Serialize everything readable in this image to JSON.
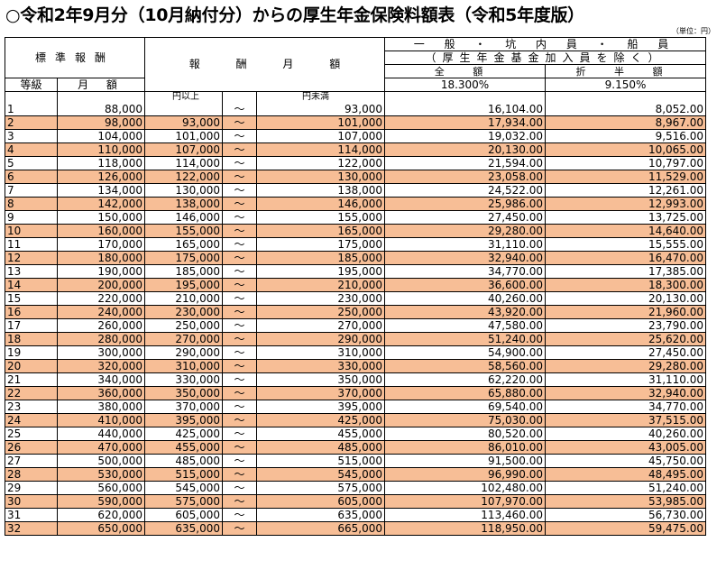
{
  "title": "○令和2年9月分（10月納付分）からの厚生年金保険料額表（令和5年度版）",
  "unit_note": "（単位：円）",
  "header": {
    "standard": "標準報酬",
    "remuneration": "報 酬 月 額",
    "general_line1": "一 般 ・ 坑 内 員 ・ 船 員",
    "general_line2": "（厚生年金基金加入員を除く）",
    "grade": "等級",
    "monthly_amount": "月 額",
    "full": "全 額",
    "half": "折 半 額",
    "full_rate": "18.300%",
    "half_rate": "9.150%",
    "from_label": "円以上",
    "to_label": "円未満",
    "tilde": "～"
  },
  "table": {
    "rows": [
      {
        "grade": "1",
        "monthly": "88,000",
        "from": "",
        "to": "93,000",
        "full": "16,104.00",
        "half": "8,052.00"
      },
      {
        "grade": "2",
        "monthly": "98,000",
        "from": "93,000",
        "to": "101,000",
        "full": "17,934.00",
        "half": "8,967.00"
      },
      {
        "grade": "3",
        "monthly": "104,000",
        "from": "101,000",
        "to": "107,000",
        "full": "19,032.00",
        "half": "9,516.00"
      },
      {
        "grade": "4",
        "monthly": "110,000",
        "from": "107,000",
        "to": "114,000",
        "full": "20,130.00",
        "half": "10,065.00"
      },
      {
        "grade": "5",
        "monthly": "118,000",
        "from": "114,000",
        "to": "122,000",
        "full": "21,594.00",
        "half": "10,797.00"
      },
      {
        "grade": "6",
        "monthly": "126,000",
        "from": "122,000",
        "to": "130,000",
        "full": "23,058.00",
        "half": "11,529.00"
      },
      {
        "grade": "7",
        "monthly": "134,000",
        "from": "130,000",
        "to": "138,000",
        "full": "24,522.00",
        "half": "12,261.00"
      },
      {
        "grade": "8",
        "monthly": "142,000",
        "from": "138,000",
        "to": "146,000",
        "full": "25,986.00",
        "half": "12,993.00"
      },
      {
        "grade": "9",
        "monthly": "150,000",
        "from": "146,000",
        "to": "155,000",
        "full": "27,450.00",
        "half": "13,725.00"
      },
      {
        "grade": "10",
        "monthly": "160,000",
        "from": "155,000",
        "to": "165,000",
        "full": "29,280.00",
        "half": "14,640.00"
      },
      {
        "grade": "11",
        "monthly": "170,000",
        "from": "165,000",
        "to": "175,000",
        "full": "31,110.00",
        "half": "15,555.00"
      },
      {
        "grade": "12",
        "monthly": "180,000",
        "from": "175,000",
        "to": "185,000",
        "full": "32,940.00",
        "half": "16,470.00"
      },
      {
        "grade": "13",
        "monthly": "190,000",
        "from": "185,000",
        "to": "195,000",
        "full": "34,770.00",
        "half": "17,385.00"
      },
      {
        "grade": "14",
        "monthly": "200,000",
        "from": "195,000",
        "to": "210,000",
        "full": "36,600.00",
        "half": "18,300.00"
      },
      {
        "grade": "15",
        "monthly": "220,000",
        "from": "210,000",
        "to": "230,000",
        "full": "40,260.00",
        "half": "20,130.00"
      },
      {
        "grade": "16",
        "monthly": "240,000",
        "from": "230,000",
        "to": "250,000",
        "full": "43,920.00",
        "half": "21,960.00"
      },
      {
        "grade": "17",
        "monthly": "260,000",
        "from": "250,000",
        "to": "270,000",
        "full": "47,580.00",
        "half": "23,790.00"
      },
      {
        "grade": "18",
        "monthly": "280,000",
        "from": "270,000",
        "to": "290,000",
        "full": "51,240.00",
        "half": "25,620.00"
      },
      {
        "grade": "19",
        "monthly": "300,000",
        "from": "290,000",
        "to": "310,000",
        "full": "54,900.00",
        "half": "27,450.00"
      },
      {
        "grade": "20",
        "monthly": "320,000",
        "from": "310,000",
        "to": "330,000",
        "full": "58,560.00",
        "half": "29,280.00"
      },
      {
        "grade": "21",
        "monthly": "340,000",
        "from": "330,000",
        "to": "350,000",
        "full": "62,220.00",
        "half": "31,110.00"
      },
      {
        "grade": "22",
        "monthly": "360,000",
        "from": "350,000",
        "to": "370,000",
        "full": "65,880.00",
        "half": "32,940.00"
      },
      {
        "grade": "23",
        "monthly": "380,000",
        "from": "370,000",
        "to": "395,000",
        "full": "69,540.00",
        "half": "34,770.00"
      },
      {
        "grade": "24",
        "monthly": "410,000",
        "from": "395,000",
        "to": "425,000",
        "full": "75,030.00",
        "half": "37,515.00"
      },
      {
        "grade": "25",
        "monthly": "440,000",
        "from": "425,000",
        "to": "455,000",
        "full": "80,520.00",
        "half": "40,260.00"
      },
      {
        "grade": "26",
        "monthly": "470,000",
        "from": "455,000",
        "to": "485,000",
        "full": "86,010.00",
        "half": "43,005.00"
      },
      {
        "grade": "27",
        "monthly": "500,000",
        "from": "485,000",
        "to": "515,000",
        "full": "91,500.00",
        "half": "45,750.00"
      },
      {
        "grade": "28",
        "monthly": "530,000",
        "from": "515,000",
        "to": "545,000",
        "full": "96,990.00",
        "half": "48,495.00"
      },
      {
        "grade": "29",
        "monthly": "560,000",
        "from": "545,000",
        "to": "575,000",
        "full": "102,480.00",
        "half": "51,240.00"
      },
      {
        "grade": "30",
        "monthly": "590,000",
        "from": "575,000",
        "to": "605,000",
        "full": "107,970.00",
        "half": "53,985.00"
      },
      {
        "grade": "31",
        "monthly": "620,000",
        "from": "605,000",
        "to": "635,000",
        "full": "113,460.00",
        "half": "56,730.00"
      },
      {
        "grade": "32",
        "monthly": "650,000",
        "from": "635,000",
        "to": "665,000",
        "full": "118,950.00",
        "half": "59,475.00"
      }
    ]
  },
  "colors": {
    "row_highlight": "#f7be96",
    "border": "#000000"
  }
}
